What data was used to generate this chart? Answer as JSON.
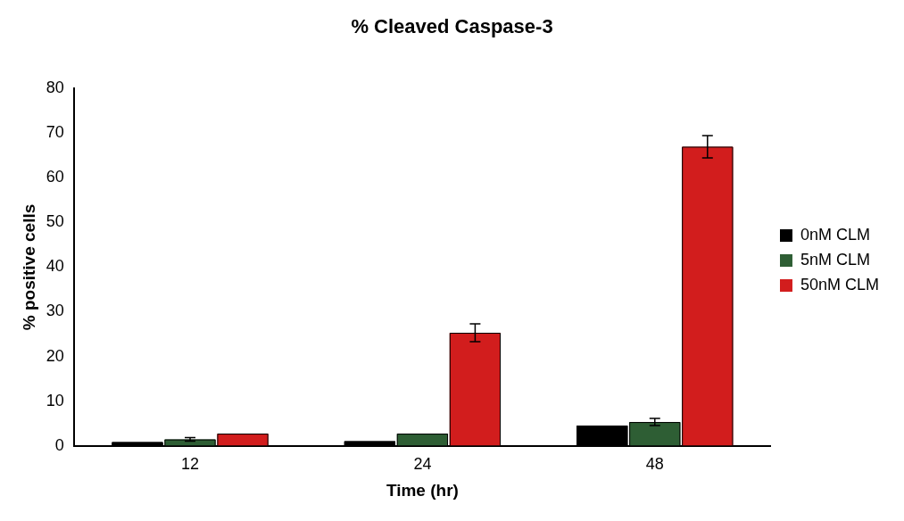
{
  "chart_data": {
    "type": "bar",
    "title": "% Cleaved Caspase-3",
    "xlabel": "Time (hr)",
    "ylabel": "% positive cells",
    "categories": [
      "12",
      "24",
      "48"
    ],
    "series": [
      {
        "name": "0nM CLM",
        "color": "#000000",
        "values": [
          0.8,
          1.0,
          4.5
        ]
      },
      {
        "name": "5nM CLM",
        "color": "#2e5e34",
        "values": [
          1.4,
          2.7,
          5.3
        ],
        "errors": [
          0.4,
          null,
          0.8
        ]
      },
      {
        "name": "50nM CLM",
        "color": "#d21d1d",
        "values": [
          2.7,
          25.3,
          67
        ],
        "errors": [
          null,
          2,
          2.5
        ]
      }
    ],
    "ylim": [
      0,
      80
    ],
    "yticks": [
      0,
      10,
      20,
      30,
      40,
      50,
      60,
      70,
      80
    ],
    "grid": false,
    "legend": "right"
  }
}
